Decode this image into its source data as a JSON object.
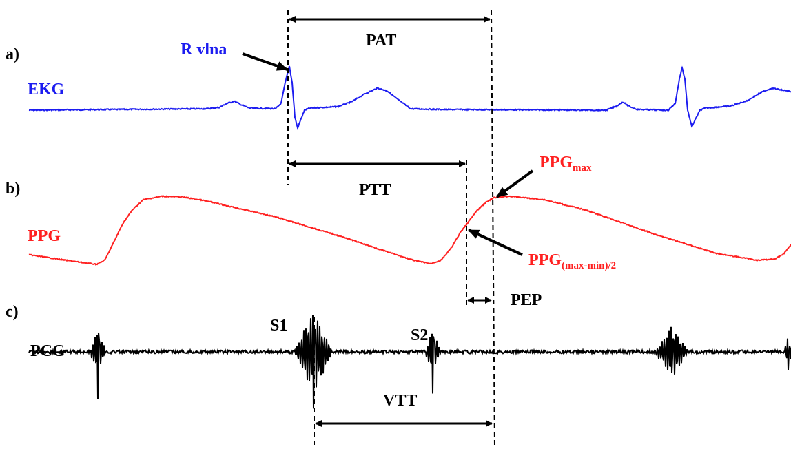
{
  "panels": {
    "a": "a)",
    "b": "b)",
    "c": "c)"
  },
  "signals": {
    "ekg": {
      "label": "EKG",
      "color": "#1c1cf0"
    },
    "ppg": {
      "label": "PPG",
      "color": "#ff2020"
    },
    "pcg": {
      "label": "PCG",
      "color": "#000000"
    }
  },
  "annotations": {
    "r_wave": "R vlna",
    "pat": "PAT",
    "ptt": "PTT",
    "pep": "PEP",
    "vtt": "VTT",
    "s1": "S1",
    "s2": "S2",
    "ppg_max_main": "PPG",
    "ppg_max_sub": "max",
    "ppg_half_main": "PPG",
    "ppg_half_sub": "(max-min)/2"
  }
}
